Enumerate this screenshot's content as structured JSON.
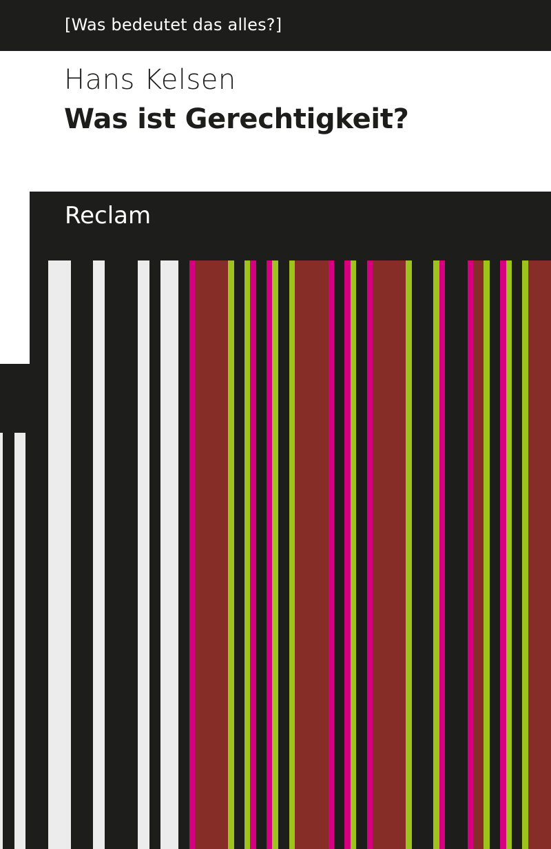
{
  "cover": {
    "series": "[Was bedeutet das alles?]",
    "author": "Hans Kelsen",
    "title": "Was ist Gerechtigkeit?",
    "publisher": "Reclam"
  },
  "colors": {
    "background_dark": "#1d1d1b",
    "white_stripe": "#ececec",
    "brown": "#862d28",
    "magenta": "#d4007f",
    "green": "#9dc31c"
  }
}
